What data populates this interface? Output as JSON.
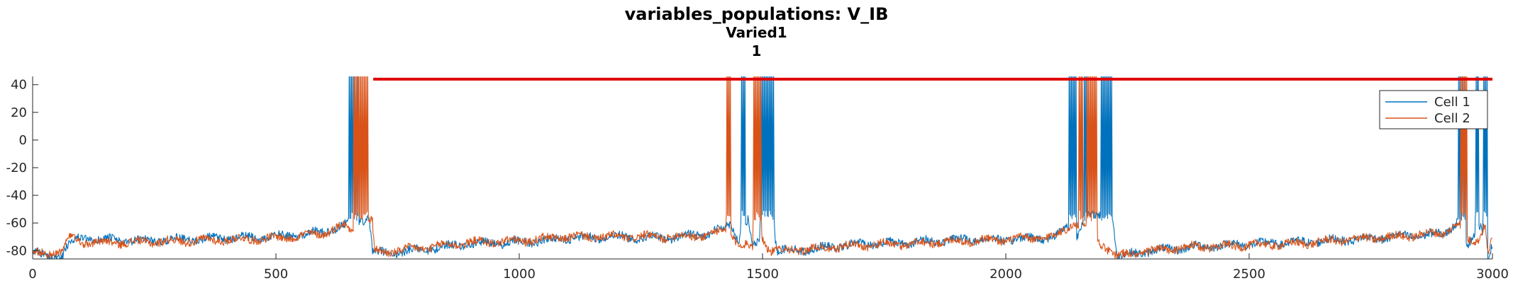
{
  "chart_data": {
    "type": "line",
    "title": "variables_populations: V_IB",
    "subtitle_lines": [
      "Varied1",
      "1"
    ],
    "xlabel": "",
    "ylabel": "",
    "xlim": [
      0,
      3000
    ],
    "ylim": [
      -86,
      46
    ],
    "x_ticks": [
      0,
      500,
      1000,
      1500,
      2000,
      2500,
      3000
    ],
    "y_ticks": [
      -80,
      -60,
      -40,
      -20,
      0,
      20,
      40
    ],
    "grid": false,
    "legend_position": "top-right",
    "colors": {
      "cell1": "#0072BD",
      "cell2": "#D95319",
      "bar": "#E00000"
    },
    "series": [
      {
        "name": "Cell 1",
        "baseline": [
          [
            0,
            -80
          ],
          [
            20,
            -84
          ],
          [
            60,
            -84
          ],
          [
            75,
            -74
          ],
          [
            100,
            -71
          ],
          [
            200,
            -73
          ],
          [
            300,
            -72
          ],
          [
            400,
            -71
          ],
          [
            500,
            -70
          ],
          [
            560,
            -68
          ],
          [
            600,
            -66
          ],
          [
            640,
            -62
          ],
          [
            648,
            -60
          ],
          [
            692,
            -56
          ],
          [
            698,
            -80
          ],
          [
            720,
            -82
          ],
          [
            800,
            -79
          ],
          [
            900,
            -75
          ],
          [
            1000,
            -74
          ],
          [
            1100,
            -71
          ],
          [
            1200,
            -70
          ],
          [
            1300,
            -71
          ],
          [
            1380,
            -68
          ],
          [
            1420,
            -64
          ],
          [
            1435,
            -60
          ],
          [
            1450,
            -72
          ],
          [
            1470,
            -58
          ],
          [
            1480,
            -78
          ],
          [
            1500,
            -72
          ],
          [
            1520,
            -55
          ],
          [
            1530,
            -80
          ],
          [
            1600,
            -79
          ],
          [
            1700,
            -75
          ],
          [
            1800,
            -74
          ],
          [
            1900,
            -72
          ],
          [
            2000,
            -72
          ],
          [
            2100,
            -70
          ],
          [
            2130,
            -62
          ],
          [
            2145,
            -70
          ],
          [
            2160,
            -55
          ],
          [
            2220,
            -56
          ],
          [
            2228,
            -84
          ],
          [
            2300,
            -80
          ],
          [
            2400,
            -77
          ],
          [
            2500,
            -75
          ],
          [
            2600,
            -74
          ],
          [
            2700,
            -72
          ],
          [
            2800,
            -70
          ],
          [
            2900,
            -68
          ],
          [
            2930,
            -58
          ],
          [
            2950,
            -78
          ],
          [
            2975,
            -60
          ],
          [
            2985,
            -76
          ],
          [
            2990,
            -86
          ],
          [
            3000,
            -75
          ]
        ],
        "bursts": [
          [
            650,
            670
          ],
          [
            1455,
            1465
          ],
          [
            1495,
            1525
          ],
          [
            2130,
            2145
          ],
          [
            2160,
            2168
          ],
          [
            2195,
            2220
          ],
          [
            2930,
            2945
          ],
          [
            2965,
            2972
          ],
          [
            2980,
            2990
          ]
        ]
      },
      {
        "name": "Cell 2",
        "baseline": [
          [
            0,
            -82
          ],
          [
            20,
            -82
          ],
          [
            60,
            -81
          ],
          [
            75,
            -71
          ],
          [
            100,
            -74
          ],
          [
            200,
            -74
          ],
          [
            300,
            -73
          ],
          [
            400,
            -72
          ],
          [
            500,
            -71
          ],
          [
            560,
            -69
          ],
          [
            600,
            -67
          ],
          [
            640,
            -62
          ],
          [
            650,
            -64
          ],
          [
            698,
            -58
          ],
          [
            702,
            -80
          ],
          [
            720,
            -81
          ],
          [
            800,
            -78
          ],
          [
            900,
            -74
          ],
          [
            1000,
            -73
          ],
          [
            1100,
            -70
          ],
          [
            1200,
            -70
          ],
          [
            1300,
            -70
          ],
          [
            1380,
            -69
          ],
          [
            1420,
            -66
          ],
          [
            1430,
            -65
          ],
          [
            1450,
            -75
          ],
          [
            1480,
            -78
          ],
          [
            1500,
            -70
          ],
          [
            1515,
            -80
          ],
          [
            1600,
            -79
          ],
          [
            1700,
            -76
          ],
          [
            1800,
            -75
          ],
          [
            1900,
            -73
          ],
          [
            2000,
            -72
          ],
          [
            2100,
            -70
          ],
          [
            2140,
            -60
          ],
          [
            2150,
            -62
          ],
          [
            2175,
            -61
          ],
          [
            2180,
            -70
          ],
          [
            2228,
            -84
          ],
          [
            2300,
            -80
          ],
          [
            2400,
            -77
          ],
          [
            2500,
            -76
          ],
          [
            2600,
            -75
          ],
          [
            2700,
            -72
          ],
          [
            2800,
            -70
          ],
          [
            2900,
            -67
          ],
          [
            2930,
            -60
          ],
          [
            2950,
            -73
          ],
          [
            2970,
            -72
          ],
          [
            2985,
            -60
          ],
          [
            2990,
            -82
          ],
          [
            3000,
            -72
          ]
        ],
        "bursts": [
          [
            660,
            690
          ],
          [
            1425,
            1435
          ],
          [
            1480,
            1498
          ],
          [
            2150,
            2158
          ],
          [
            2165,
            2180
          ],
          [
            2180,
            2188
          ],
          [
            2935,
            2948
          ]
        ]
      }
    ],
    "annotations": [
      {
        "type": "horizontal_bar",
        "x_start": 700,
        "x_end": 3000,
        "y": 44
      }
    ]
  }
}
